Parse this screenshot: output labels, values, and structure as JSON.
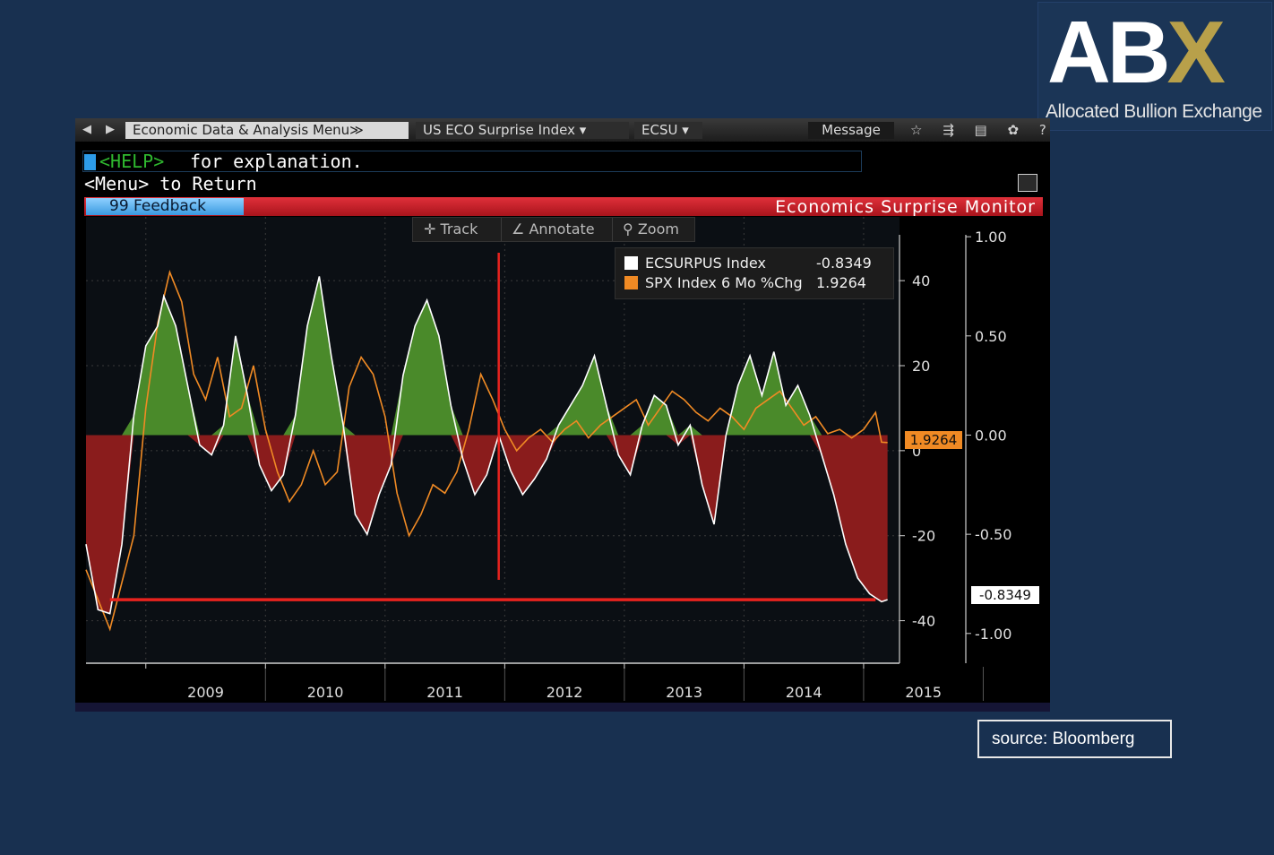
{
  "logo": {
    "letters_ab": "AB",
    "letter_x": "X",
    "subtitle": "Allocated Bullion Exchange",
    "brand_color": "#b8a04a"
  },
  "toolbar": {
    "back_icon": "◀",
    "forward_icon": "▶",
    "menu_label": "Economic Data & Analysis Menu≫",
    "index_label": "US ECO Surprise Index ▾",
    "ecsu_label": "ECSU ▾",
    "message_label": "Message",
    "icons": [
      "star-icon",
      "share-icon",
      "document-icon",
      "gear-icon",
      "help-icon"
    ],
    "icon_glyphs": "☆ ⇶ ▤ ✿ ?"
  },
  "command": {
    "help_text": "<HELP>",
    "explanation_text": " for explanation.",
    "menu_text": "<Menu> to Return"
  },
  "banner": {
    "feedback_label": "99 Feedback",
    "title": "Economics Surprise Monitor"
  },
  "controls": {
    "track": "Track",
    "annotate": "Annotate",
    "zoom": "Zoom"
  },
  "legend": {
    "items": [
      {
        "name": "ECSURPUS Index",
        "value": "-0.8349",
        "color": "#ffffff"
      },
      {
        "name": "SPX Index 6 Mo %Chg",
        "value": "1.9264",
        "color": "#f08a24"
      }
    ]
  },
  "badges": {
    "spx_current": "1.9264",
    "ecsu_current": "-0.8349"
  },
  "source": "source: Bloomberg",
  "chart_data": {
    "type": "area",
    "title": "Economics Surprise Monitor",
    "x_labels": [
      "2009",
      "2010",
      "2011",
      "2012",
      "2013",
      "2014",
      "2015"
    ],
    "y_left_ticks": [
      "40",
      "20",
      "0",
      "-20",
      "-40"
    ],
    "y_right_ticks": [
      "1.00",
      "0.50",
      "0.00",
      "-0.50",
      "-1.00"
    ],
    "y_left_range": [
      -50,
      55
    ],
    "y_right_range": [
      -1.15,
      1.1
    ],
    "grid": true,
    "colors": {
      "positive_fill": "#4a8a2a",
      "negative_fill": "#8a1c1c",
      "spx_line": "#f08a24",
      "ecsu_line": "#ffffff",
      "annotation": "#e8231e"
    },
    "annotations": [
      {
        "type": "vertical-line",
        "x": 2011.95
      },
      {
        "type": "horizontal-line",
        "y": -0.83,
        "from": 2008.7,
        "to": 2015.1
      }
    ],
    "series": [
      {
        "name": "ECSURPUS Index",
        "axis": "right",
        "x": [
          2008.5,
          2008.6,
          2008.7,
          2008.8,
          2008.9,
          2009.0,
          2009.1,
          2009.15,
          2009.25,
          2009.35,
          2009.45,
          2009.55,
          2009.65,
          2009.75,
          2009.85,
          2009.95,
          2010.05,
          2010.15,
          2010.25,
          2010.35,
          2010.45,
          2010.55,
          2010.65,
          2010.75,
          2010.85,
          2010.95,
          2011.05,
          2011.15,
          2011.25,
          2011.35,
          2011.45,
          2011.55,
          2011.65,
          2011.75,
          2011.85,
          2011.95,
          2012.05,
          2012.15,
          2012.25,
          2012.35,
          2012.45,
          2012.55,
          2012.65,
          2012.75,
          2012.85,
          2012.95,
          2013.05,
          2013.15,
          2013.25,
          2013.35,
          2013.45,
          2013.55,
          2013.65,
          2013.75,
          2013.85,
          2013.95,
          2014.05,
          2014.15,
          2014.25,
          2014.35,
          2014.45,
          2014.55,
          2014.65,
          2014.75,
          2014.85,
          2014.95,
          2015.05,
          2015.15,
          2015.2
        ],
        "y": [
          -0.55,
          -0.88,
          -0.9,
          -0.55,
          0.1,
          0.45,
          0.55,
          0.7,
          0.55,
          0.25,
          -0.05,
          -0.1,
          0.05,
          0.5,
          0.2,
          -0.15,
          -0.28,
          -0.2,
          0.1,
          0.55,
          0.8,
          0.4,
          0.05,
          -0.4,
          -0.5,
          -0.3,
          -0.15,
          0.3,
          0.55,
          0.68,
          0.5,
          0.15,
          -0.12,
          -0.3,
          -0.2,
          0.0,
          -0.18,
          -0.3,
          -0.22,
          -0.12,
          0.05,
          0.15,
          0.25,
          0.4,
          0.15,
          -0.1,
          -0.2,
          0.05,
          0.2,
          0.15,
          -0.05,
          0.05,
          -0.25,
          -0.45,
          0.0,
          0.25,
          0.4,
          0.2,
          0.42,
          0.15,
          0.25,
          0.1,
          -0.1,
          -0.3,
          -0.55,
          -0.72,
          -0.8,
          -0.84,
          -0.83
        ]
      },
      {
        "name": "SPX Index 6 Mo %Chg",
        "axis": "left",
        "x": [
          2008.5,
          2008.7,
          2008.9,
          2009.0,
          2009.1,
          2009.2,
          2009.3,
          2009.4,
          2009.5,
          2009.6,
          2009.7,
          2009.8,
          2009.9,
          2010.0,
          2010.1,
          2010.2,
          2010.3,
          2010.4,
          2010.5,
          2010.6,
          2010.7,
          2010.8,
          2010.9,
          2011.0,
          2011.1,
          2011.2,
          2011.3,
          2011.4,
          2011.5,
          2011.6,
          2011.7,
          2011.8,
          2011.9,
          2012.0,
          2012.1,
          2012.2,
          2012.3,
          2012.4,
          2012.5,
          2012.6,
          2012.7,
          2012.8,
          2012.9,
          2013.0,
          2013.1,
          2013.2,
          2013.3,
          2013.4,
          2013.5,
          2013.6,
          2013.7,
          2013.8,
          2013.9,
          2014.0,
          2014.1,
          2014.2,
          2014.3,
          2014.4,
          2014.5,
          2014.6,
          2014.7,
          2014.8,
          2014.9,
          2015.0,
          2015.1,
          2015.15,
          2015.2
        ],
        "y": [
          -28,
          -42,
          -20,
          10,
          30,
          42,
          35,
          18,
          12,
          22,
          8,
          10,
          20,
          5,
          -5,
          -12,
          -8,
          0,
          -8,
          -5,
          15,
          22,
          18,
          8,
          -10,
          -20,
          -15,
          -8,
          -10,
          -5,
          5,
          18,
          12,
          5,
          0,
          3,
          5,
          2,
          5,
          7,
          3,
          6,
          8,
          10,
          12,
          6,
          10,
          14,
          12,
          9,
          7,
          10,
          8,
          5,
          10,
          12,
          14,
          10,
          6,
          8,
          4,
          5,
          3,
          5,
          9,
          2,
          1.9
        ]
      }
    ]
  }
}
